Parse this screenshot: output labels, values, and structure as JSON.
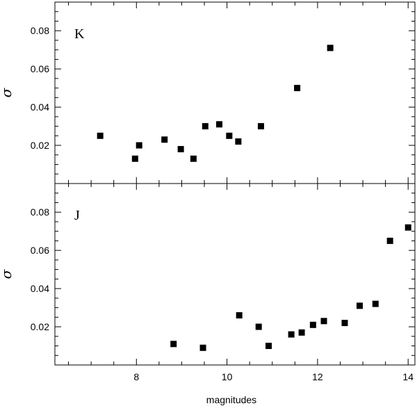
{
  "chart_data": [
    {
      "type": "scatter",
      "panel_label": "K",
      "ylabel": "σ",
      "xlim": [
        6.2,
        14.15
      ],
      "ylim": [
        0.0,
        0.095
      ],
      "yticks_major": [
        0.02,
        0.04,
        0.06,
        0.08
      ],
      "yticks_major_labels": [
        "0.02",
        "0.04",
        "0.06",
        "0.08"
      ],
      "series": [
        {
          "points": [
            {
              "x": 7.2,
              "y": 0.025
            },
            {
              "x": 7.97,
              "y": 0.013
            },
            {
              "x": 8.06,
              "y": 0.02
            },
            {
              "x": 8.62,
              "y": 0.023
            },
            {
              "x": 8.98,
              "y": 0.018
            },
            {
              "x": 9.26,
              "y": 0.013
            },
            {
              "x": 9.52,
              "y": 0.03
            },
            {
              "x": 9.83,
              "y": 0.031
            },
            {
              "x": 10.05,
              "y": 0.025
            },
            {
              "x": 10.25,
              "y": 0.022
            },
            {
              "x": 10.75,
              "y": 0.03
            },
            {
              "x": 11.55,
              "y": 0.05
            },
            {
              "x": 12.28,
              "y": 0.071
            }
          ]
        }
      ]
    },
    {
      "type": "scatter",
      "panel_label": "J",
      "ylabel": "σ",
      "xlabel": "magnitudes",
      "xlim": [
        6.2,
        14.15
      ],
      "ylim": [
        0.0,
        0.095
      ],
      "xticks_major": [
        8,
        10,
        12,
        14
      ],
      "xticks_major_labels": [
        "8",
        "10",
        "12",
        "14"
      ],
      "yticks_major": [
        0.02,
        0.04,
        0.06,
        0.08
      ],
      "yticks_major_labels": [
        "0.02",
        "0.04",
        "0.06",
        "0.08"
      ],
      "series": [
        {
          "points": [
            {
              "x": 8.82,
              "y": 0.011
            },
            {
              "x": 9.47,
              "y": 0.009
            },
            {
              "x": 10.27,
              "y": 0.026
            },
            {
              "x": 10.7,
              "y": 0.02
            },
            {
              "x": 10.92,
              "y": 0.01
            },
            {
              "x": 11.42,
              "y": 0.016
            },
            {
              "x": 11.65,
              "y": 0.017
            },
            {
              "x": 11.9,
              "y": 0.021
            },
            {
              "x": 12.14,
              "y": 0.023
            },
            {
              "x": 12.6,
              "y": 0.022
            },
            {
              "x": 12.93,
              "y": 0.031
            },
            {
              "x": 13.28,
              "y": 0.032
            },
            {
              "x": 13.6,
              "y": 0.065
            },
            {
              "x": 14.0,
              "y": 0.072
            }
          ]
        }
      ]
    }
  ]
}
